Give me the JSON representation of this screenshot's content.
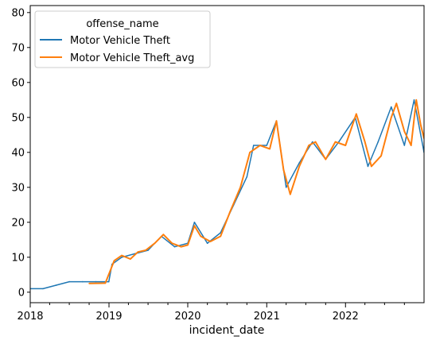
{
  "chart_data": {
    "type": "line",
    "xlabel": "incident_date",
    "ylabel": "",
    "x_range": [
      "2018-01-01",
      "2022-12-31"
    ],
    "ylim": [
      -3,
      82
    ],
    "x_ticks": [
      "2018",
      "2019",
      "2020",
      "2021",
      "2022"
    ],
    "y_ticks": [
      0,
      10,
      20,
      30,
      40,
      50,
      60,
      70,
      80
    ],
    "grid": false,
    "legend": {
      "title": "offense_name",
      "placement": "top-left"
    },
    "series": [
      {
        "name": "Motor Vehicle Theft",
        "color": "#1f77b4",
        "points": [
          [
            "2018-01-01",
            1
          ],
          [
            "2018-03-01",
            1
          ],
          [
            "2018-05-01",
            2
          ],
          [
            "2018-07-01",
            3
          ],
          [
            "2018-09-01",
            3
          ],
          [
            "2018-11-01",
            3
          ],
          [
            "2018-12-31",
            3
          ],
          [
            "2019-01-15",
            8
          ],
          [
            "2019-03-01",
            10
          ],
          [
            "2019-05-01",
            11
          ],
          [
            "2019-07-01",
            12
          ],
          [
            "2019-09-01",
            16
          ],
          [
            "2019-11-01",
            13
          ],
          [
            "2020-01-01",
            14
          ],
          [
            "2020-02-01",
            20
          ],
          [
            "2020-04-01",
            14
          ],
          [
            "2020-06-01",
            17
          ],
          [
            "2020-08-01",
            25
          ],
          [
            "2020-10-01",
            33
          ],
          [
            "2020-11-01",
            42
          ],
          [
            "2021-01-01",
            42
          ],
          [
            "2021-02-15",
            49
          ],
          [
            "2021-04-01",
            30
          ],
          [
            "2021-06-01",
            37
          ],
          [
            "2021-08-01",
            43
          ],
          [
            "2021-10-01",
            38
          ],
          [
            "2021-12-01",
            43
          ],
          [
            "2022-02-15",
            50
          ],
          [
            "2022-04-15",
            36
          ],
          [
            "2022-06-01",
            43
          ],
          [
            "2022-08-01",
            53
          ],
          [
            "2022-10-01",
            42
          ],
          [
            "2022-11-15",
            55
          ],
          [
            "2022-12-31",
            40
          ]
        ]
      },
      {
        "name": "Motor Vehicle Theft_avg",
        "color": "#ff7f0e",
        "points": [
          [
            "2018-10-01",
            2.5
          ],
          [
            "2018-12-15",
            2.6
          ],
          [
            "2019-01-25",
            9
          ],
          [
            "2019-03-01",
            10.5
          ],
          [
            "2019-04-10",
            9.5
          ],
          [
            "2019-05-15",
            11.5
          ],
          [
            "2019-06-20",
            12
          ],
          [
            "2019-08-01",
            14
          ],
          [
            "2019-09-10",
            16.5
          ],
          [
            "2019-10-20",
            14
          ],
          [
            "2019-12-01",
            13
          ],
          [
            "2020-01-01",
            13.5
          ],
          [
            "2020-02-01",
            19
          ],
          [
            "2020-03-01",
            16
          ],
          [
            "2020-04-15",
            14.5
          ],
          [
            "2020-06-01",
            16
          ],
          [
            "2020-07-15",
            23
          ],
          [
            "2020-09-01",
            30
          ],
          [
            "2020-10-15",
            40
          ],
          [
            "2020-12-01",
            42
          ],
          [
            "2021-01-15",
            41
          ],
          [
            "2021-02-15",
            49
          ],
          [
            "2021-03-20",
            35
          ],
          [
            "2021-04-20",
            28
          ],
          [
            "2021-06-01",
            36
          ],
          [
            "2021-07-15",
            42
          ],
          [
            "2021-08-15",
            43
          ],
          [
            "2021-10-01",
            38
          ],
          [
            "2021-11-15",
            43
          ],
          [
            "2022-01-01",
            42
          ],
          [
            "2022-02-20",
            51
          ],
          [
            "2022-04-01",
            43
          ],
          [
            "2022-05-01",
            36
          ],
          [
            "2022-06-15",
            39
          ],
          [
            "2022-08-01",
            50
          ],
          [
            "2022-08-25",
            54
          ],
          [
            "2022-10-01",
            46
          ],
          [
            "2022-11-01",
            42
          ],
          [
            "2022-11-25",
            55
          ],
          [
            "2022-12-15",
            48
          ],
          [
            "2022-12-31",
            44
          ]
        ]
      }
    ]
  }
}
